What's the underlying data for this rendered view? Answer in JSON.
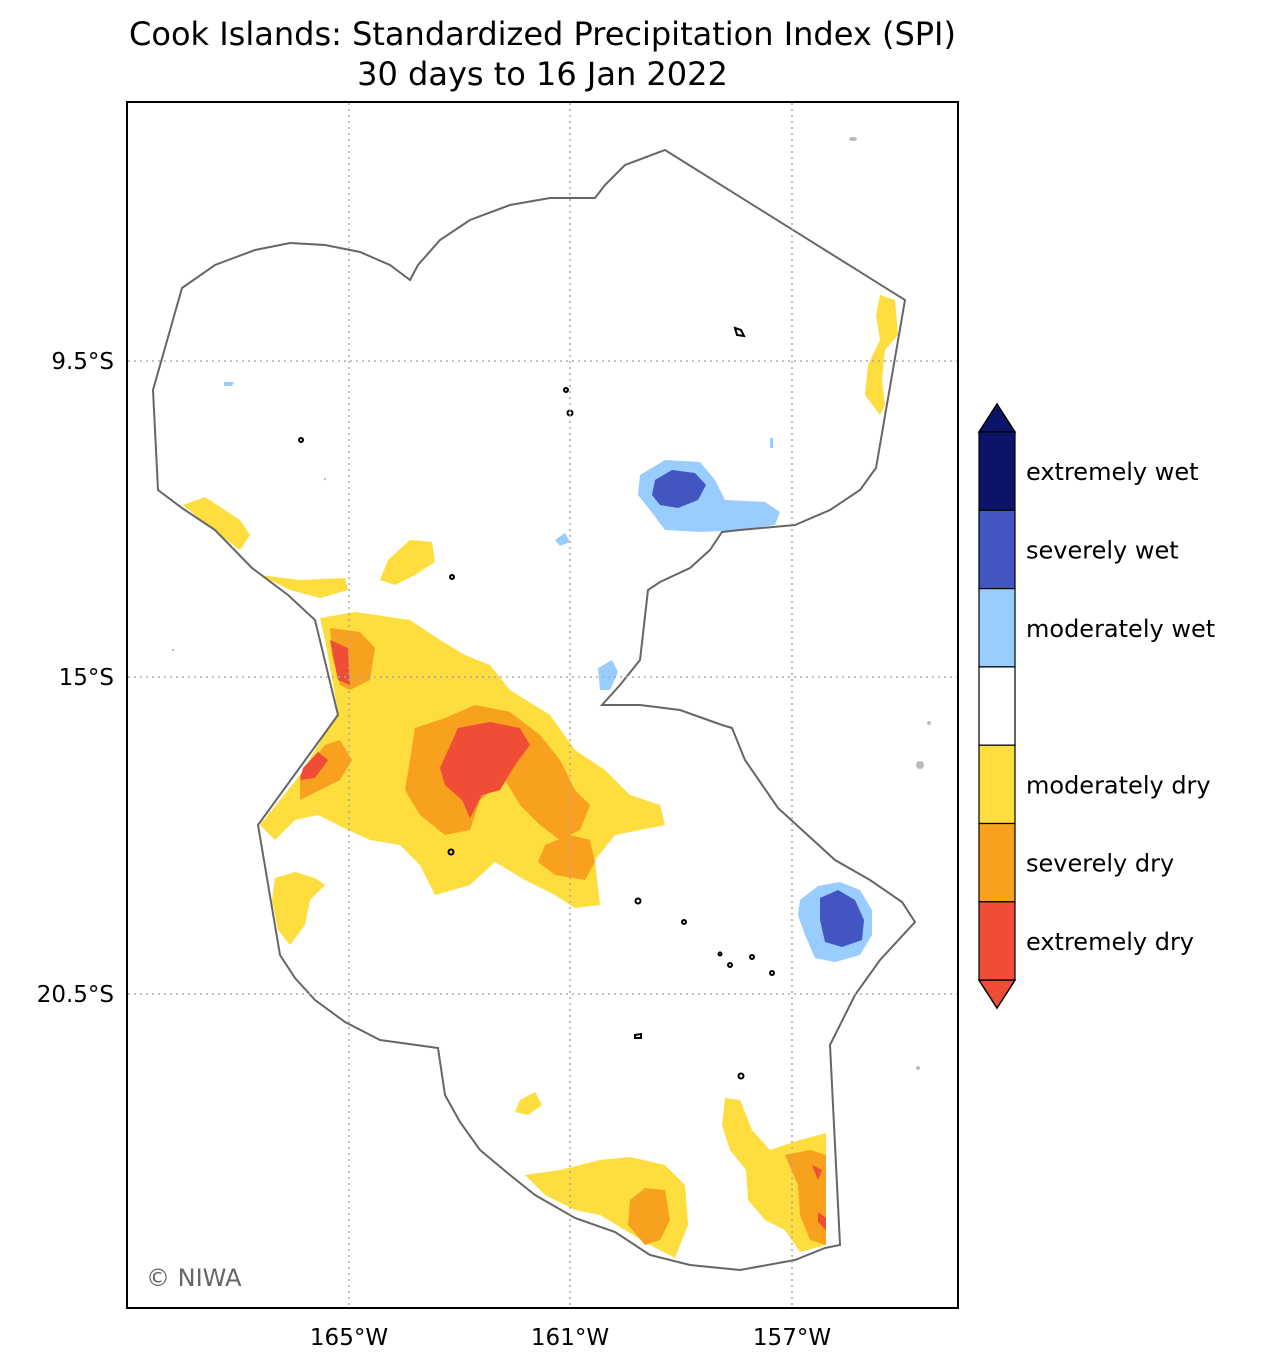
{
  "title": {
    "line1": "Cook Islands: Standardized Precipitation Index (SPI)",
    "line2": "30 days to 16 Jan 2022"
  },
  "axes": {
    "lon_ticks": [
      "165°W",
      "161°W",
      "157°W"
    ],
    "lat_ticks": [
      "9.5°S",
      "15°S",
      "20.5°S"
    ]
  },
  "credit": "© NIWA",
  "legend": {
    "items": [
      {
        "label": "extremely wet",
        "color": "#0b1467"
      },
      {
        "label": "severely wet",
        "color": "#4355c1"
      },
      {
        "label": "moderately wet",
        "color": "#99ccff"
      },
      {
        "label": "",
        "color": "#ffffff"
      },
      {
        "label": "moderately dry",
        "color": "#fedd3f"
      },
      {
        "label": "severely dry",
        "color": "#f7a11e"
      },
      {
        "label": "extremely dry",
        "color": "#ef4d36"
      }
    ]
  }
}
